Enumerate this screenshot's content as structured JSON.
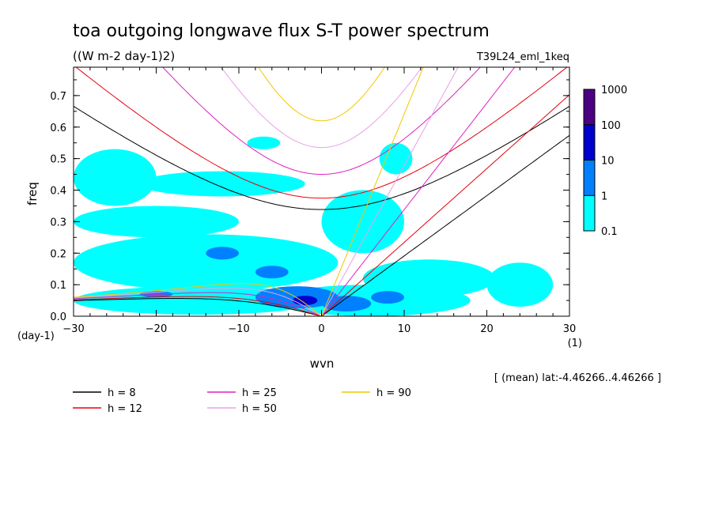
{
  "chart_data": {
    "type": "heatmap",
    "title": "toa outgoing longwave flux S-T power spectrum",
    "units": "((W m-2 day-1)2)",
    "run_label": "T39L24_eml_1keq",
    "xlabel": "wvn",
    "ylabel": "freq",
    "x_units": "(1)",
    "y_units": "(day-1)",
    "xlim": [
      -30,
      30
    ],
    "ylim": [
      0,
      0.79
    ],
    "x_ticks": [
      -30,
      -20,
      -10,
      0,
      10,
      20,
      30
    ],
    "y_ticks": [
      0.0,
      0.1,
      0.2,
      0.3,
      0.4,
      0.5,
      0.6,
      0.7
    ],
    "x_tick_labels": [
      "-30",
      "-20",
      "-10",
      "0",
      "10",
      "20",
      "30"
    ],
    "y_tick_labels": [
      "0.0",
      "0.1",
      "0.2",
      "0.3",
      "0.4",
      "0.5",
      "0.6",
      "0.7"
    ],
    "colorbar": {
      "levels": [
        0.1,
        1,
        10,
        100,
        1000
      ],
      "labels": [
        "0.1",
        "1",
        "10",
        "100",
        "1000"
      ],
      "colors": [
        "#00ffff",
        "#0080ff",
        "#0000cd",
        "#4b0082"
      ]
    },
    "footer": "[ (mean) lat:-4.46266..4.46266 ]",
    "legend_placement": "bottom-left",
    "dispersion_curves": [
      {
        "h": 8,
        "label": "h =  8",
        "color": "#000000"
      },
      {
        "h": 12,
        "label": "h = 12",
        "color": "#e8000b"
      },
      {
        "h": 25,
        "label": "h = 25",
        "color": "#e020c0"
      },
      {
        "h": 50,
        "label": "h = 50",
        "color": "#e8a0e8"
      },
      {
        "h": 90,
        "label": "h = 90",
        "color": "#f0c800"
      }
    ],
    "power_regions": [
      {
        "level": 0.1,
        "shape": "ellipse",
        "cx": -15,
        "cy": 0.05,
        "rx": 15,
        "ry": 0.045
      },
      {
        "level": 0.1,
        "shape": "ellipse",
        "cx": -14,
        "cy": 0.17,
        "rx": 16,
        "ry": 0.09
      },
      {
        "level": 0.1,
        "shape": "ellipse",
        "cx": -20,
        "cy": 0.3,
        "rx": 10,
        "ry": 0.05
      },
      {
        "level": 0.1,
        "shape": "ellipse",
        "cx": -25,
        "cy": 0.44,
        "rx": 5,
        "ry": 0.09
      },
      {
        "level": 0.1,
        "shape": "ellipse",
        "cx": -12,
        "cy": 0.42,
        "rx": 10,
        "ry": 0.04
      },
      {
        "level": 0.1,
        "shape": "ellipse",
        "cx": 6,
        "cy": 0.05,
        "rx": 12,
        "ry": 0.05
      },
      {
        "level": 0.1,
        "shape": "ellipse",
        "cx": 13,
        "cy": 0.12,
        "rx": 8,
        "ry": 0.06
      },
      {
        "level": 0.1,
        "shape": "ellipse",
        "cx": 24,
        "cy": 0.1,
        "rx": 4,
        "ry": 0.07
      },
      {
        "level": 0.1,
        "shape": "ellipse",
        "cx": 5,
        "cy": 0.3,
        "rx": 5,
        "ry": 0.1
      },
      {
        "level": 0.1,
        "shape": "ellipse",
        "cx": 9,
        "cy": 0.5,
        "rx": 2,
        "ry": 0.05
      },
      {
        "level": 0.1,
        "shape": "ellipse",
        "cx": -7,
        "cy": 0.55,
        "rx": 2,
        "ry": 0.02
      },
      {
        "level": 1,
        "shape": "ellipse",
        "cx": -3,
        "cy": 0.06,
        "rx": 5,
        "ry": 0.035
      },
      {
        "level": 1,
        "shape": "ellipse",
        "cx": 3,
        "cy": 0.04,
        "rx": 3,
        "ry": 0.025
      },
      {
        "level": 1,
        "shape": "ellipse",
        "cx": -12,
        "cy": 0.2,
        "rx": 2,
        "ry": 0.02
      },
      {
        "level": 1,
        "shape": "ellipse",
        "cx": -6,
        "cy": 0.14,
        "rx": 2,
        "ry": 0.02
      },
      {
        "level": 1,
        "shape": "ellipse",
        "cx": 8,
        "cy": 0.06,
        "rx": 2,
        "ry": 0.02
      },
      {
        "level": 1,
        "shape": "ellipse",
        "cx": -20,
        "cy": 0.07,
        "rx": 2,
        "ry": 0.01
      },
      {
        "level": 10,
        "shape": "ellipse",
        "cx": -2,
        "cy": 0.05,
        "rx": 1.5,
        "ry": 0.015
      }
    ]
  }
}
